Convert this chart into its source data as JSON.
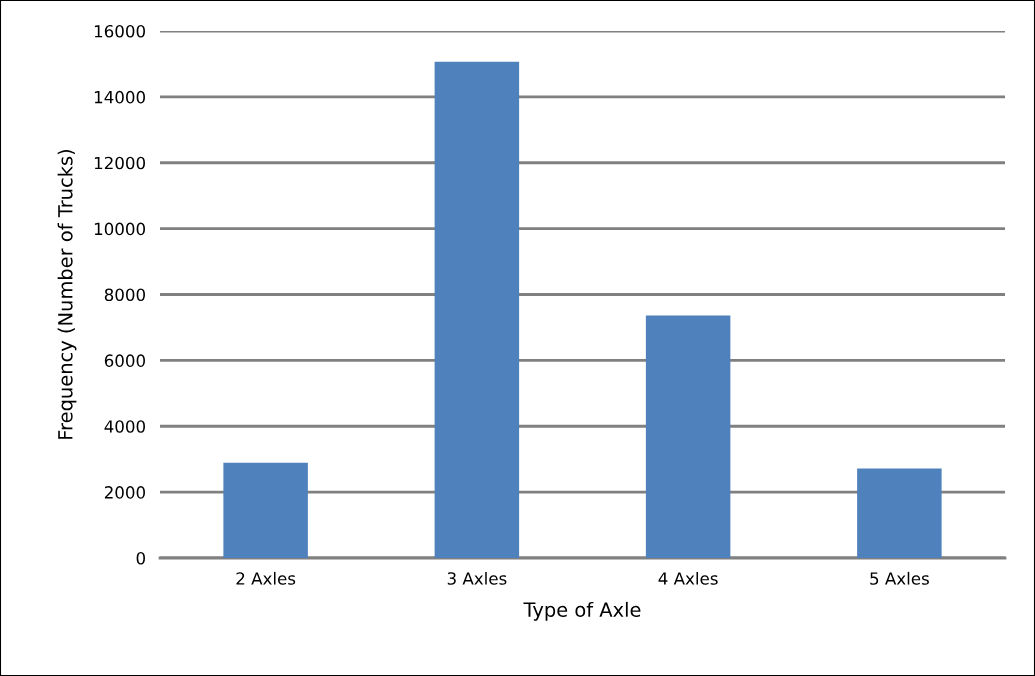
{
  "chart_data": {
    "type": "bar",
    "xlabel": "Type of Axle",
    "ylabel": "Frequency (Number of Trucks)",
    "categories": [
      "2 Axles",
      "3 Axles",
      "4 Axles",
      "5 Axles"
    ],
    "values": [
      2890,
      15070,
      7360,
      2720
    ],
    "color": "#4f81bd",
    "ylim": [
      0,
      16000
    ],
    "yticks": [
      0,
      2000,
      4000,
      6000,
      8000,
      10000,
      12000,
      14000,
      16000
    ],
    "grid": "y"
  }
}
